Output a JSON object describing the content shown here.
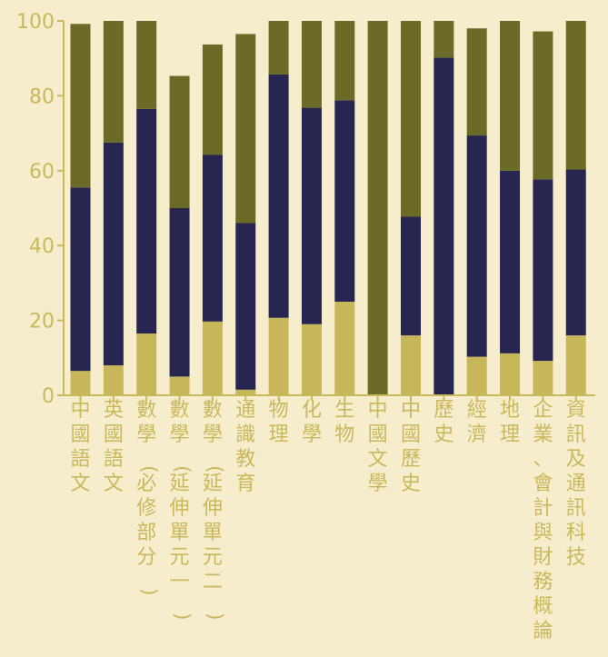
{
  "chart_data": {
    "type": "bar",
    "stacked": true,
    "title": "",
    "xlabel": "",
    "ylabel": "",
    "ylim": [
      0,
      100
    ],
    "yticks": [
      "0",
      "20",
      "40",
      "60",
      "80",
      "100"
    ],
    "grid": false,
    "categories": [
      "中國語文",
      "英國語文",
      "數學(必修部分)",
      "數學(延伸單元一)",
      "數學(延伸單元二)",
      "通識教育",
      "物理",
      "化學",
      "生物",
      "中國文學",
      "中國歷史",
      "歷史",
      "經濟",
      "地理",
      "企業、會計與財務概論",
      "資訊及通訊科技"
    ],
    "series": [
      {
        "values": [
          6.5,
          8,
          16.5,
          5,
          19.7,
          1.5,
          20.7,
          19,
          25,
          0,
          16,
          0,
          10.3,
          11.2,
          9.2,
          16
        ]
      },
      {
        "values": [
          49,
          59.5,
          60,
          45,
          44.5,
          44.5,
          65,
          57.8,
          53.8,
          0,
          31.7,
          90.2,
          59.1,
          48.8,
          48.5,
          44.3
        ]
      },
      {
        "values": [
          43.7,
          32.5,
          23.5,
          35.3,
          29.5,
          50.5,
          14.3,
          23.2,
          21.2,
          100,
          52.3,
          9.8,
          28.6,
          40,
          39.5,
          39.7
        ]
      }
    ],
    "colors": {
      "series": [
        "#c8b75a",
        "#262651",
        "#6b6b27"
      ],
      "axis": "#c9b85c",
      "text": "#c9b85c",
      "background": "#f6edcc"
    }
  }
}
